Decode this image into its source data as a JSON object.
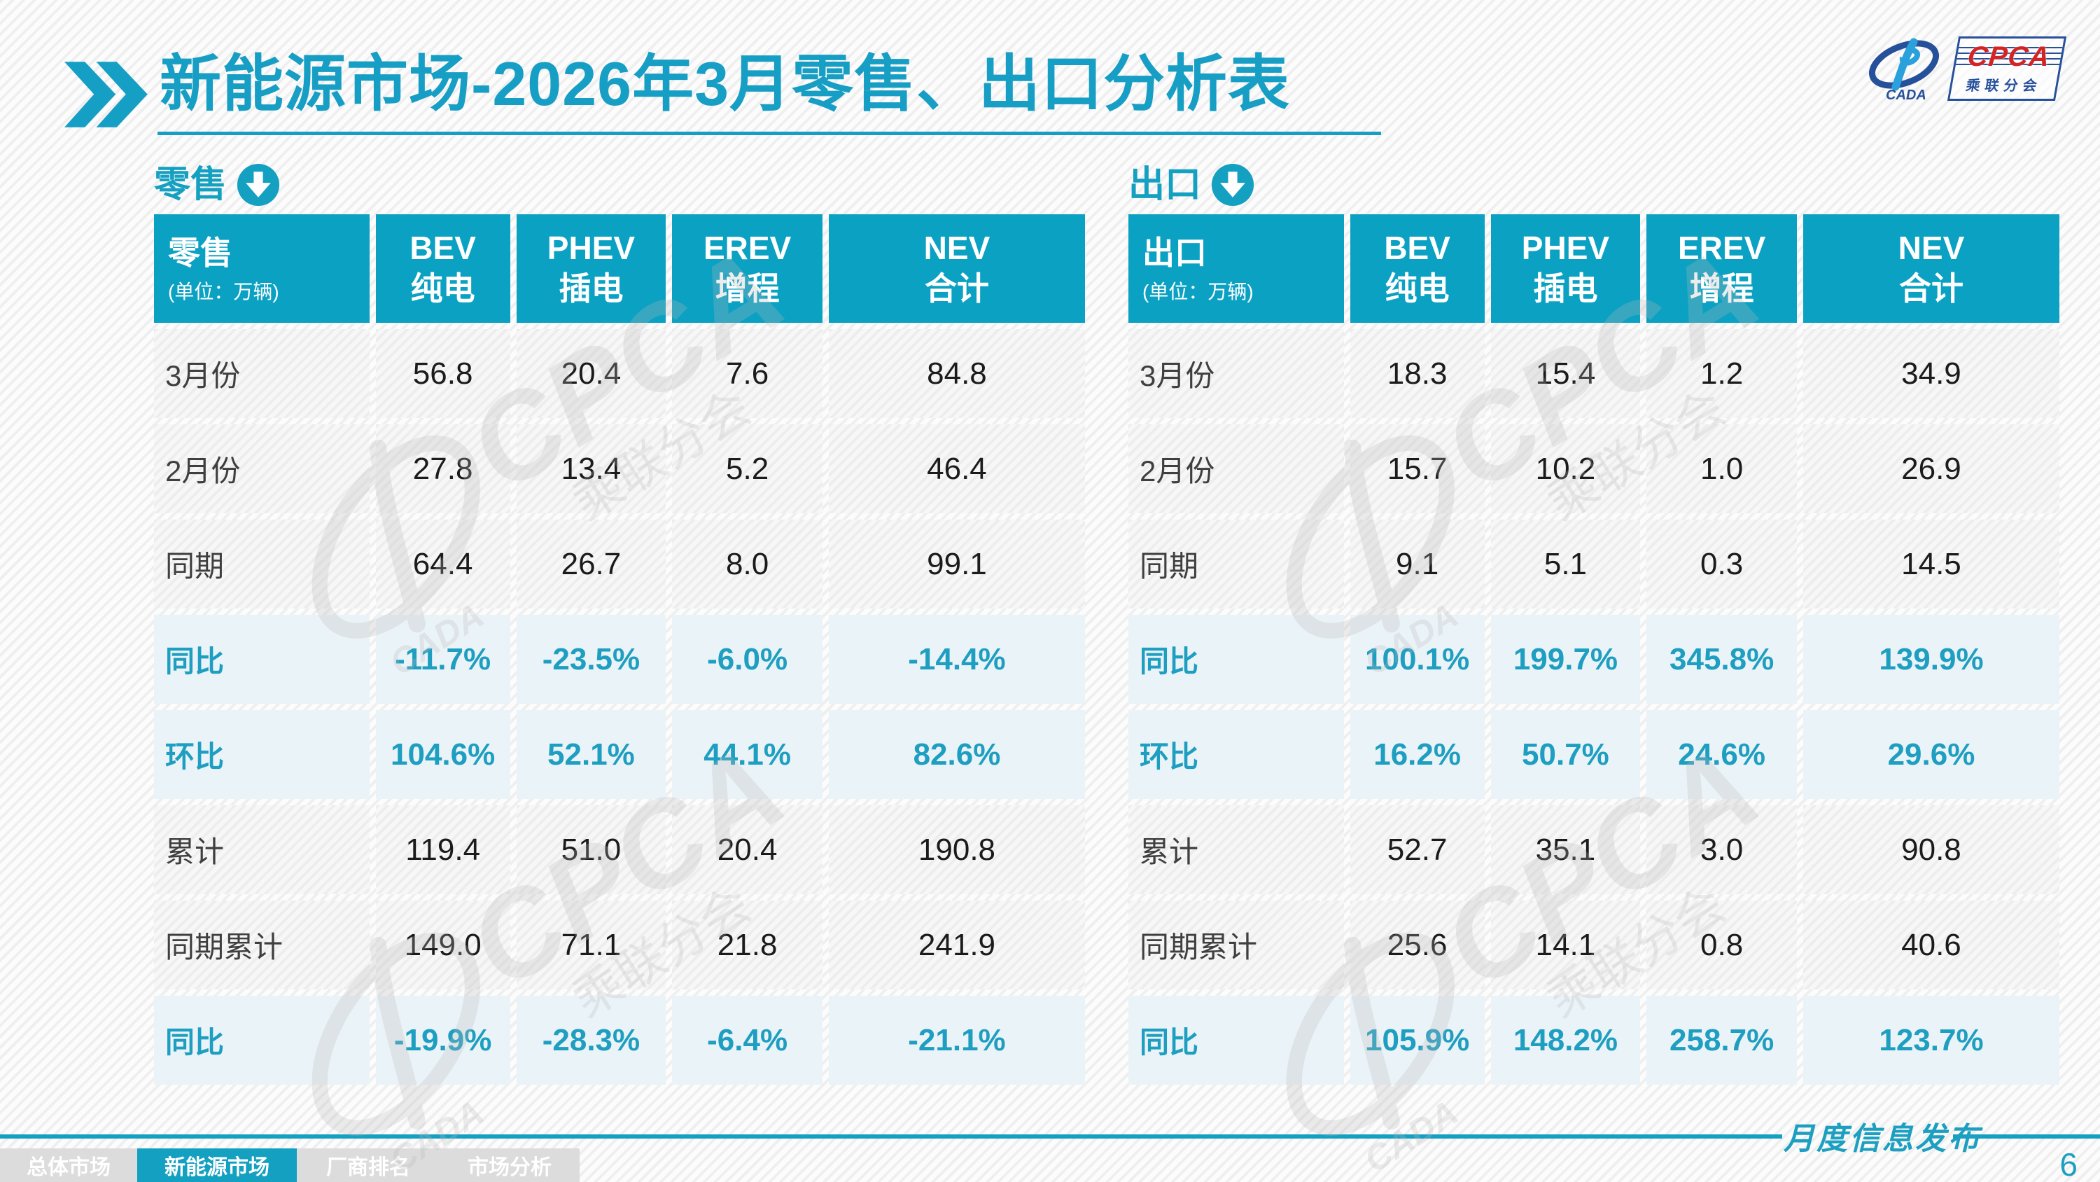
{
  "title": {
    "prefix": "新能源市场",
    "suffix": "-2026年3月零售、出口分析表"
  },
  "logo": {
    "cada_label": "CADA",
    "cpca_label": "CPCA",
    "cpca_subtitle": "乘联分会"
  },
  "colors": {
    "accent": "#14A0C1",
    "header_bg": "#0BA1C2",
    "highlight_row_bg": "#EAF3F8",
    "highlight_text": "#1E9EC0",
    "title_text": "#179EC4",
    "nav_bg": "#DCDCDC",
    "nav_active_bg": "#14A0C1",
    "logo_blue": "#27509B",
    "logo_red": "#D42323"
  },
  "tables": [
    {
      "section_label": "零售",
      "header": {
        "label": "零售",
        "unit": "(单位：万辆)",
        "columns": [
          {
            "line1": "BEV",
            "line2": "纯电"
          },
          {
            "line1": "PHEV",
            "line2": "插电"
          },
          {
            "line1": "EREV",
            "line2": "增程"
          },
          {
            "line1": "NEV",
            "line2": "合计"
          }
        ]
      },
      "rows": [
        {
          "label": "3月份",
          "type": "normal",
          "values": [
            "56.8",
            "20.4",
            "7.6",
            "84.8"
          ]
        },
        {
          "label": "2月份",
          "type": "normal",
          "values": [
            "27.8",
            "13.4",
            "5.2",
            "46.4"
          ]
        },
        {
          "label": "同期",
          "type": "normal",
          "values": [
            "64.4",
            "26.7",
            "8.0",
            "99.1"
          ]
        },
        {
          "label": "同比",
          "type": "highlight",
          "values": [
            "-11.7%",
            "-23.5%",
            "-6.0%",
            "-14.4%"
          ]
        },
        {
          "label": "环比",
          "type": "highlight",
          "values": [
            "104.6%",
            "52.1%",
            "44.1%",
            "82.6%"
          ]
        },
        {
          "label": "累计",
          "type": "normal",
          "values": [
            "119.4",
            "51.0",
            "20.4",
            "190.8"
          ]
        },
        {
          "label": "同期累计",
          "type": "normal",
          "values": [
            "149.0",
            "71.1",
            "21.8",
            "241.9"
          ]
        },
        {
          "label": "同比",
          "type": "highlight",
          "values": [
            "-19.9%",
            "-28.3%",
            "-6.4%",
            "-21.1%"
          ]
        }
      ]
    },
    {
      "section_label": "出口",
      "header": {
        "label": "出口",
        "unit": "(单位：万辆)",
        "columns": [
          {
            "line1": "BEV",
            "line2": "纯电"
          },
          {
            "line1": "PHEV",
            "line2": "插电"
          },
          {
            "line1": "EREV",
            "line2": "增程"
          },
          {
            "line1": "NEV",
            "line2": "合计"
          }
        ]
      },
      "rows": [
        {
          "label": "3月份",
          "type": "normal",
          "values": [
            "18.3",
            "15.4",
            "1.2",
            "34.9"
          ]
        },
        {
          "label": "2月份",
          "type": "normal",
          "values": [
            "15.7",
            "10.2",
            "1.0",
            "26.9"
          ]
        },
        {
          "label": "同期",
          "type": "normal",
          "values": [
            "9.1",
            "5.1",
            "0.3",
            "14.5"
          ]
        },
        {
          "label": "同比",
          "type": "highlight",
          "values": [
            "100.1%",
            "199.7%",
            "345.8%",
            "139.9%"
          ]
        },
        {
          "label": "环比",
          "type": "highlight",
          "values": [
            "16.2%",
            "50.7%",
            "24.6%",
            "29.6%"
          ]
        },
        {
          "label": "累计",
          "type": "normal",
          "values": [
            "52.7",
            "35.1",
            "3.0",
            "90.8"
          ]
        },
        {
          "label": "同期累计",
          "type": "normal",
          "values": [
            "25.6",
            "14.1",
            "0.8",
            "40.6"
          ]
        },
        {
          "label": "同比",
          "type": "highlight",
          "values": [
            "105.9%",
            "148.2%",
            "258.7%",
            "123.7%"
          ]
        }
      ]
    }
  ],
  "watermark": {
    "main": "CPCA",
    "sub": "乘联分会",
    "cada": "CADA"
  },
  "footer": {
    "tabs": [
      "总体市场",
      "新能源市场",
      "厂商排名",
      "市场分析"
    ],
    "active_tab_index": 1,
    "publication": "月度信息发布",
    "page": "6"
  }
}
